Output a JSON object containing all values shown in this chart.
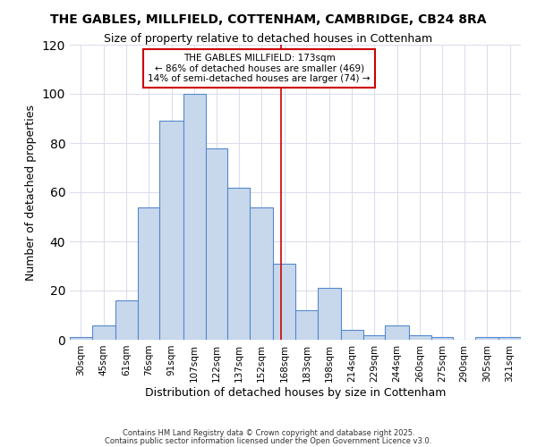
{
  "title1": "THE GABLES, MILLFIELD, COTTENHAM, CAMBRIDGE, CB24 8RA",
  "title2": "Size of property relative to detached houses in Cottenham",
  "xlabel": "Distribution of detached houses by size in Cottenham",
  "ylabel": "Number of detached properties",
  "annotation_title": "THE GABLES MILLFIELD: 173sqm",
  "annotation_line1": "← 86% of detached houses are smaller (469)",
  "annotation_line2": "14% of semi-detached houses are larger (74) →",
  "vline_x": 173,
  "bar_color": "#c8d8ec",
  "bar_edge_color": "#5588cc",
  "annotation_box_edge": "#cc0000",
  "vline_color": "#cc0000",
  "background_color": "#ffffff",
  "grid_color": "#ddddee",
  "bins": [
    30,
    45,
    61,
    76,
    91,
    107,
    122,
    137,
    152,
    168,
    183,
    198,
    214,
    229,
    244,
    260,
    275,
    290,
    305,
    321,
    336
  ],
  "counts": [
    1,
    6,
    16,
    54,
    89,
    100,
    78,
    62,
    54,
    31,
    12,
    21,
    4,
    2,
    6,
    2,
    1,
    0,
    1,
    1
  ],
  "ylim": [
    0,
    120
  ],
  "yticks": [
    0,
    20,
    40,
    60,
    80,
    100,
    120
  ],
  "footnote1": "Contains HM Land Registry data © Crown copyright and database right 2025.",
  "footnote2": "Contains public sector information licensed under the Open Government Licence v3.0."
}
